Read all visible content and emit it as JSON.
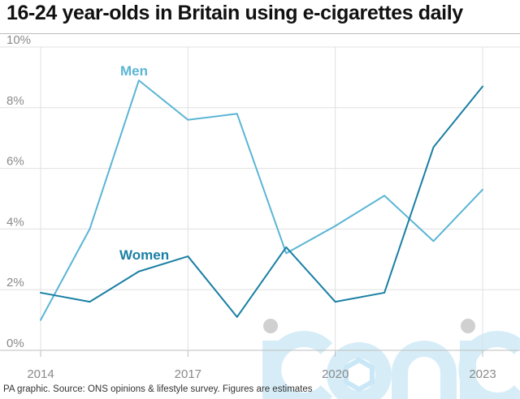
{
  "title": "16-24 year-olds in Britain using e-cigarettes daily",
  "source": "PA graphic. Source: ONS opinions & lifestyle survey. Figures are estimates",
  "watermark": "iconic",
  "colors": {
    "men": "#5bb5d5",
    "women": "#1a7fa3",
    "grid": "#e0e0e0",
    "axis": "#bdbdbd",
    "watermark": "#c9e7f6"
  },
  "chart_data": {
    "type": "line",
    "title": "16-24 year-olds in Britain using e-cigarettes daily",
    "xlabel": "",
    "ylabel": "",
    "x": [
      2014,
      2015,
      2016,
      2017,
      2018,
      2019,
      2020,
      2021,
      2022,
      2023
    ],
    "x_tick_labels": [
      "2014",
      "2017",
      "2020",
      "2023"
    ],
    "x_tick_values": [
      2014,
      2017,
      2020,
      2023
    ],
    "y_tick_labels": [
      "0%",
      "2%",
      "4%",
      "6%",
      "8%",
      "10%"
    ],
    "y_tick_values": [
      0,
      2,
      4,
      6,
      8,
      10
    ],
    "ylim": [
      0,
      10
    ],
    "xlim": [
      2014,
      2023
    ],
    "grid": true,
    "legend": "inline labels",
    "series": [
      {
        "name": "Men",
        "values": [
          1.0,
          4.0,
          8.9,
          7.6,
          7.8,
          3.2,
          4.1,
          5.1,
          3.6,
          5.3
        ]
      },
      {
        "name": "Women",
        "values": [
          1.9,
          1.6,
          2.6,
          3.1,
          1.1,
          3.4,
          1.6,
          1.9,
          6.7,
          8.7
        ]
      }
    ]
  }
}
